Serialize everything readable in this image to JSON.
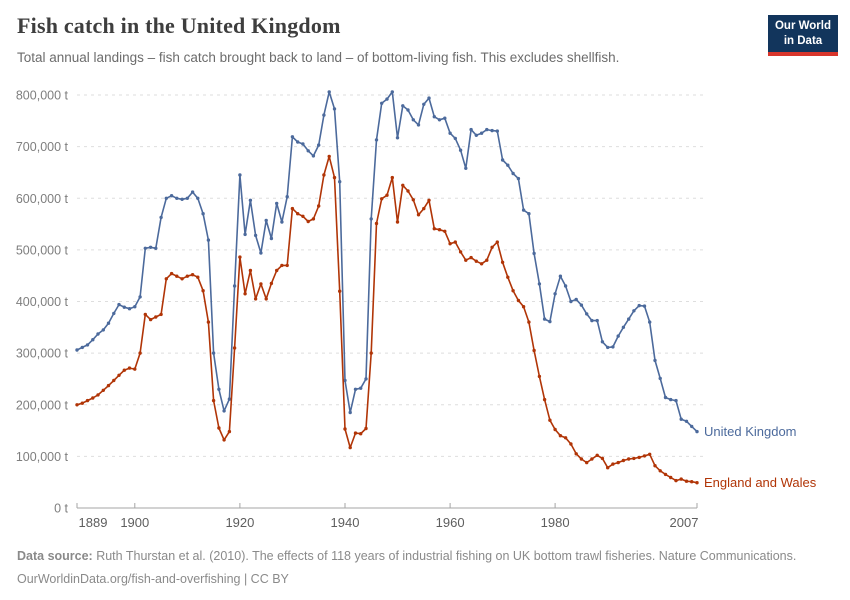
{
  "header": {
    "title": "Fish catch in the United Kingdom",
    "subtitle": "Total annual landings – fish catch brought back to land – of bottom-living fish. This excludes shellfish."
  },
  "logo": {
    "line1": "Our World",
    "line2": "in Data",
    "bg_color": "#12355c",
    "accent_color": "#d8352b"
  },
  "footer": {
    "source_label": "Data source:",
    "source_text": " Ruth Thurstan et al. (2010). The effects of 118 years of industrial fishing on UK bottom trawl fisheries. Nature Communications.",
    "license_line": "OurWorldinData.org/fish-and-overfishing | CC BY"
  },
  "chart_data": {
    "type": "line",
    "unit": "t",
    "grid": "horizontal dashed",
    "legend_position": "end-of-line labels",
    "ylim": [
      0,
      820000
    ],
    "y_ticks": [
      0,
      100000,
      200000,
      300000,
      400000,
      500000,
      600000,
      700000,
      800000
    ],
    "y_tick_labels": [
      "0 t",
      "100,000 t",
      "200,000 t",
      "300,000 t",
      "400,000 t",
      "500,000 t",
      "600,000 t",
      "700,000 t",
      "800,000 t"
    ],
    "x_ticks": [
      1889,
      1900,
      1920,
      1940,
      1960,
      1980,
      2007
    ],
    "x": [
      1889,
      1890,
      1891,
      1892,
      1893,
      1894,
      1895,
      1896,
      1897,
      1898,
      1899,
      1900,
      1901,
      1902,
      1903,
      1904,
      1905,
      1906,
      1907,
      1908,
      1909,
      1910,
      1911,
      1912,
      1913,
      1914,
      1915,
      1916,
      1917,
      1918,
      1919,
      1920,
      1921,
      1922,
      1923,
      1924,
      1925,
      1926,
      1927,
      1928,
      1929,
      1930,
      1931,
      1932,
      1933,
      1934,
      1935,
      1936,
      1937,
      1938,
      1939,
      1940,
      1941,
      1942,
      1943,
      1944,
      1945,
      1946,
      1947,
      1948,
      1949,
      1950,
      1951,
      1952,
      1953,
      1954,
      1955,
      1956,
      1957,
      1958,
      1959,
      1960,
      1961,
      1962,
      1963,
      1964,
      1965,
      1966,
      1967,
      1968,
      1969,
      1970,
      1971,
      1972,
      1973,
      1974,
      1975,
      1976,
      1977,
      1978,
      1979,
      1980,
      1981,
      1982,
      1983,
      1984,
      1985,
      1986,
      1987,
      1988,
      1989,
      1990,
      1991,
      1992,
      1993,
      1994,
      1995,
      1996,
      1997,
      1998,
      1999,
      2000,
      2001,
      2002,
      2003,
      2004,
      2005,
      2006,
      2007
    ],
    "series": [
      {
        "name": "United Kingdom",
        "color": "#4c6a9c",
        "values": [
          306000,
          311000,
          316000,
          326000,
          337000,
          345000,
          358000,
          377000,
          394000,
          389000,
          386000,
          390000,
          409000,
          503000,
          505000,
          503000,
          563000,
          600000,
          605000,
          600000,
          598000,
          600000,
          612000,
          600000,
          570000,
          519000,
          300000,
          230000,
          188000,
          211000,
          430000,
          645000,
          530000,
          596000,
          528000,
          494000,
          557000,
          522000,
          590000,
          554000,
          603000,
          719000,
          709000,
          705000,
          692000,
          682000,
          703000,
          761000,
          806000,
          773000,
          632000,
          247000,
          185000,
          230000,
          232000,
          250000,
          560000,
          713000,
          784000,
          792000,
          806000,
          717000,
          779000,
          771000,
          752000,
          742000,
          782000,
          794000,
          758000,
          752000,
          755000,
          726000,
          716000,
          693000,
          658000,
          733000,
          722000,
          726000,
          733000,
          731000,
          730000,
          674000,
          664000,
          648000,
          638000,
          577000,
          570000,
          493000,
          434000,
          366000,
          361000,
          415000,
          449000,
          430000,
          400000,
          404000,
          393000,
          376000,
          363000,
          363000,
          322000,
          311000,
          312000,
          333000,
          350000,
          366000,
          382000,
          392000,
          391000,
          360000,
          286000,
          251000,
          214000,
          210000,
          208000,
          172000,
          168000,
          158000,
          148000
        ]
      },
      {
        "name": "England and Wales",
        "color": "#b13507",
        "values": [
          200000,
          203000,
          208000,
          213000,
          219000,
          228000,
          237000,
          247000,
          257000,
          267000,
          271000,
          269000,
          300000,
          375000,
          365000,
          370000,
          375000,
          444000,
          454000,
          449000,
          444000,
          449000,
          452000,
          447000,
          421000,
          360000,
          208000,
          155000,
          132000,
          148000,
          310000,
          486000,
          415000,
          460000,
          405000,
          434000,
          405000,
          435000,
          460000,
          470000,
          470000,
          580000,
          570000,
          565000,
          555000,
          560000,
          585000,
          645000,
          681000,
          640000,
          420000,
          153000,
          117000,
          145000,
          144000,
          154000,
          300000,
          551000,
          599000,
          606000,
          640000,
          554000,
          625000,
          614000,
          597000,
          568000,
          580000,
          596000,
          541000,
          539000,
          536000,
          512000,
          515000,
          496000,
          480000,
          485000,
          478000,
          473000,
          480000,
          505000,
          515000,
          476000,
          447000,
          421000,
          402000,
          390000,
          360000,
          305000,
          255000,
          210000,
          170000,
          152000,
          140000,
          136000,
          124000,
          105000,
          95000,
          88000,
          95000,
          102000,
          96000,
          78000,
          85000,
          88000,
          92000,
          95000,
          96000,
          98000,
          101000,
          104000,
          82000,
          72000,
          65000,
          59000,
          53000,
          56000,
          52000,
          51000,
          49000
        ]
      }
    ]
  }
}
